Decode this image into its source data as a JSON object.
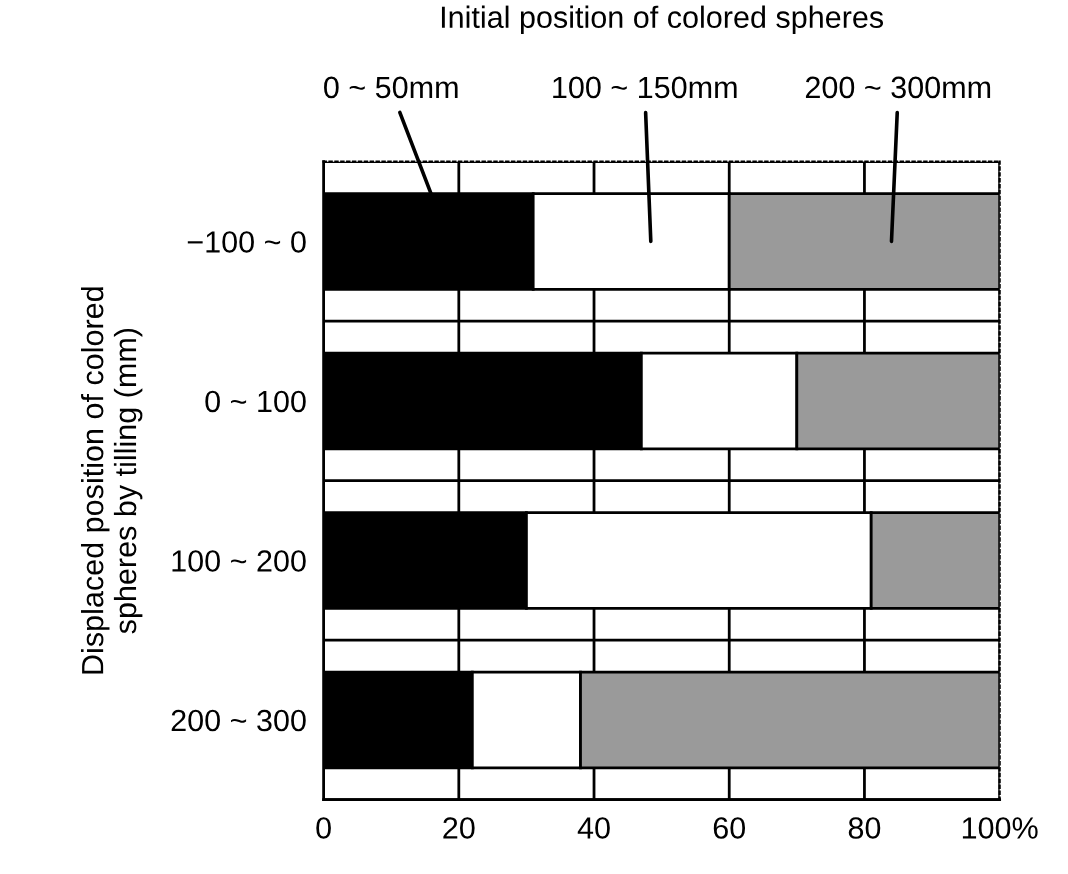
{
  "chart_data": {
    "type": "bar",
    "orientation": "horizontal",
    "stacked": true,
    "legend_title": "Initial position of colored spheres",
    "legend": "top",
    "ylabel": "Displaced position of colored\nspheres by tilling (mm)",
    "categories": [
      "−100 ~ 0",
      "0 ~ 100",
      "100 ~ 200",
      "200 ~ 300"
    ],
    "series": [
      {
        "name": "0 ~ 50mm",
        "color": "#000000",
        "values": [
          31,
          47,
          30,
          22
        ]
      },
      {
        "name": "100 ~ 150mm",
        "color": "#ffffff",
        "values": [
          29,
          23,
          51,
          16
        ]
      },
      {
        "name": "200 ~ 300mm",
        "color": "#9a9a9a",
        "values": [
          40,
          30,
          19,
          62
        ]
      }
    ],
    "xlim": [
      0,
      100
    ],
    "xticks": [
      0,
      20,
      40,
      60,
      80,
      {
        "value": 100,
        "label": "100%"
      }
    ],
    "grid": true
  }
}
